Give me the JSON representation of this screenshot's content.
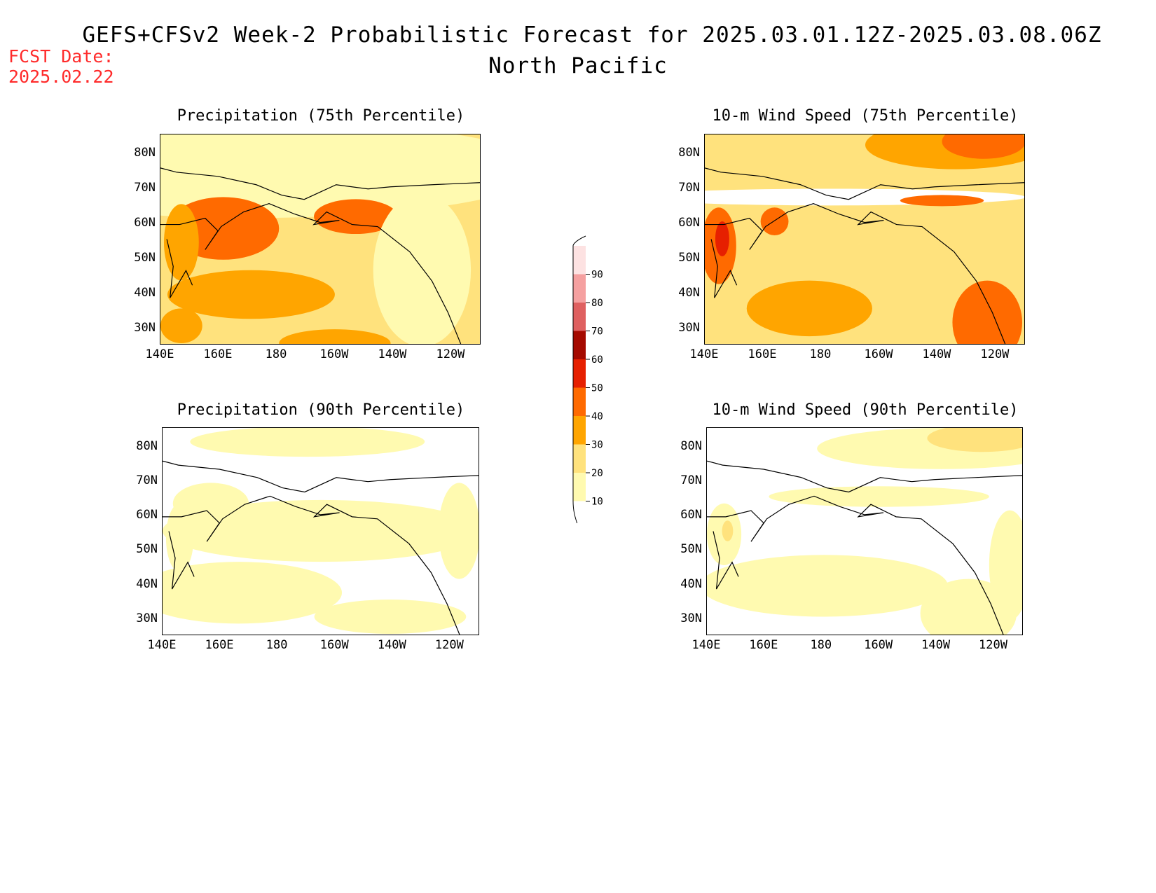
{
  "header": {
    "title": "GEFS+CFSv2 Week-2 Probabilistic Forecast for 2025.03.01.12Z-2025.03.08.06Z",
    "subtitle": "North Pacific",
    "fcst_label": "FCST Date:",
    "fcst_date": "2025.02.22"
  },
  "axes": {
    "x_ticks": [
      "140E",
      "160E",
      "180",
      "160W",
      "140W",
      "120W"
    ],
    "y_ticks": [
      "80N",
      "70N",
      "60N",
      "50N",
      "40N",
      "30N"
    ]
  },
  "panels": [
    {
      "title": "Precipitation (75th Percentile)",
      "background_color": "#ffe27d"
    },
    {
      "title": "10-m Wind Speed (75th Percentile)",
      "background_color": "#ffe27d"
    },
    {
      "title": "Precipitation (90th Percentile)",
      "background_color": "#ffffff"
    },
    {
      "title": "10-m Wind Speed (90th Percentile)",
      "background_color": "#ffffff"
    }
  ],
  "colorbar": {
    "levels": [
      "10",
      "20",
      "30",
      "40",
      "50",
      "60",
      "70",
      "80",
      "90"
    ],
    "colors": [
      "#fffab0",
      "#ffe27d",
      "#ffa500",
      "#ff6a00",
      "#e62000",
      "#a50a00",
      "#df6060",
      "#f5a0a0",
      "#fde2e2"
    ]
  }
}
